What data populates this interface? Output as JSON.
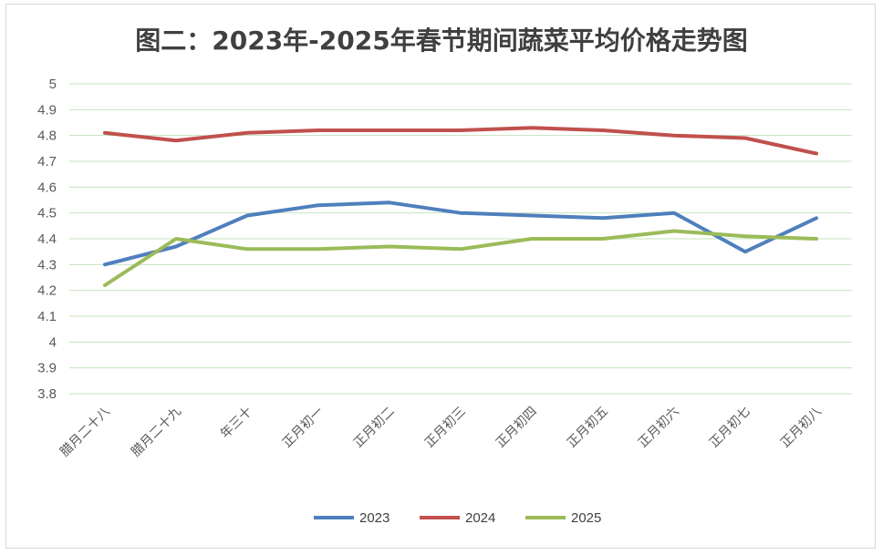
{
  "chart_data": {
    "type": "line",
    "title": "图二：2023年-2025年春节期间蔬菜平均价格走势图",
    "xlabel": "",
    "ylabel": "",
    "categories": [
      "腊月二十八",
      "腊月二十九",
      "年三十",
      "正月初一",
      "正月初二",
      "正月初三",
      "正月初四",
      "正月初五",
      "正月初六",
      "正月初七",
      "正月初八"
    ],
    "ylim": [
      3.8,
      5
    ],
    "ytick_step": 0.1,
    "yticks": [
      "5",
      "4.9",
      "4.8",
      "4.7",
      "4.6",
      "4.5",
      "4.4",
      "4.3",
      "4.2",
      "4.1",
      "4",
      "3.9",
      "3.8"
    ],
    "grid": true,
    "legend_position": "bottom",
    "series": [
      {
        "name": "2023",
        "color": "#4f7fbd",
        "values": [
          4.3,
          4.37,
          4.49,
          4.53,
          4.54,
          4.5,
          4.49,
          4.48,
          4.5,
          4.35,
          4.48
        ]
      },
      {
        "name": "2024",
        "color": "#c0504d",
        "values": [
          4.81,
          4.78,
          4.81,
          4.82,
          4.82,
          4.82,
          4.83,
          4.82,
          4.8,
          4.79,
          4.73
        ]
      },
      {
        "name": "2025",
        "color": "#9bbb59",
        "values": [
          4.22,
          4.4,
          4.36,
          4.36,
          4.37,
          4.36,
          4.4,
          4.4,
          4.43,
          4.41,
          4.4
        ]
      }
    ],
    "gridline_color": "#c6e3bf"
  }
}
